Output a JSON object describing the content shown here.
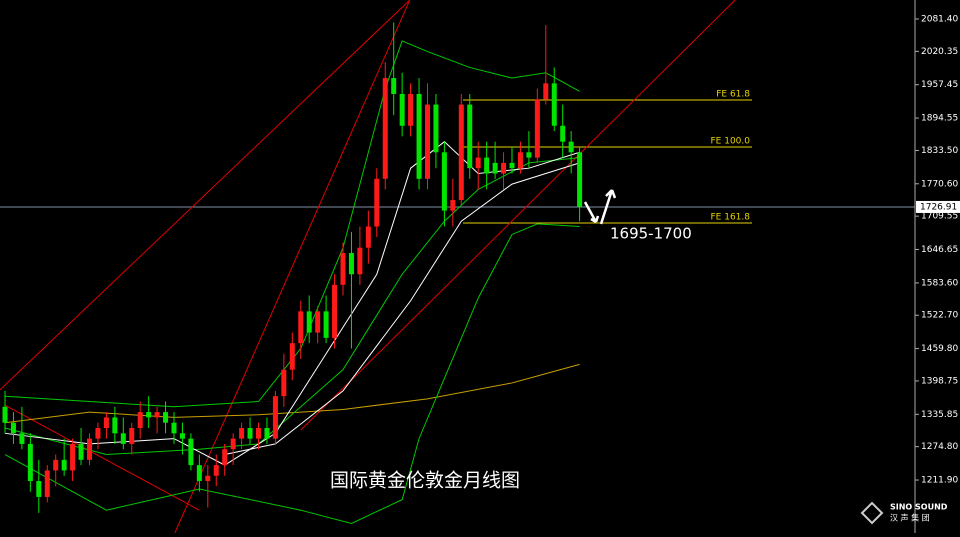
{
  "chart_data": {
    "type": "candlestick",
    "up_color": "#ff1a1a",
    "down_color": "#00e600",
    "ylim": [
      1112,
      2117.2
    ],
    "yticks": [
      {
        "value": 2081.4,
        "label": "2081.40"
      },
      {
        "value": 2020.35,
        "label": "2020.35"
      },
      {
        "value": 1957.45,
        "label": "1957.45"
      },
      {
        "value": 1894.55,
        "label": "1894.55"
      },
      {
        "value": 1833.5,
        "label": "1833.50"
      },
      {
        "value": 1770.6,
        "label": "1770.60"
      },
      {
        "value": 1709.55,
        "label": "1709.55"
      },
      {
        "value": 1646.65,
        "label": "1646.65"
      },
      {
        "value": 1583.6,
        "label": "1583.60"
      },
      {
        "value": 1522.7,
        "label": "1522.70"
      },
      {
        "value": 1459.8,
        "label": "1459.80"
      },
      {
        "value": 1398.75,
        "label": "1398.75"
      },
      {
        "value": 1335.85,
        "label": "1335.85"
      },
      {
        "value": 1274.8,
        "label": "1274.80"
      },
      {
        "value": 1211.9,
        "label": "1211.90"
      }
    ],
    "current_price": 1726.91,
    "candles": [
      [
        1350,
        1380,
        1300,
        1320
      ],
      [
        1320,
        1340,
        1280,
        1300
      ],
      [
        1300,
        1350,
        1270,
        1280
      ],
      [
        1280,
        1300,
        1190,
        1210
      ],
      [
        1210,
        1250,
        1150,
        1180
      ],
      [
        1180,
        1240,
        1170,
        1230
      ],
      [
        1230,
        1260,
        1200,
        1250
      ],
      [
        1250,
        1290,
        1220,
        1230
      ],
      [
        1230,
        1290,
        1210,
        1280
      ],
      [
        1280,
        1310,
        1240,
        1250
      ],
      [
        1250,
        1300,
        1240,
        1290
      ],
      [
        1290,
        1320,
        1270,
        1310
      ],
      [
        1310,
        1340,
        1290,
        1330
      ],
      [
        1330,
        1350,
        1280,
        1300
      ],
      [
        1300,
        1330,
        1270,
        1280
      ],
      [
        1280,
        1320,
        1260,
        1310
      ],
      [
        1310,
        1360,
        1290,
        1340
      ],
      [
        1340,
        1370,
        1310,
        1330
      ],
      [
        1330,
        1350,
        1300,
        1340
      ],
      [
        1340,
        1360,
        1300,
        1320
      ],
      [
        1320,
        1340,
        1280,
        1300
      ],
      [
        1300,
        1320,
        1260,
        1290
      ],
      [
        1290,
        1300,
        1230,
        1240
      ],
      [
        1240,
        1260,
        1190,
        1210
      ],
      [
        1210,
        1240,
        1160,
        1220
      ],
      [
        1220,
        1260,
        1200,
        1240
      ],
      [
        1240,
        1280,
        1220,
        1270
      ],
      [
        1270,
        1300,
        1240,
        1290
      ],
      [
        1290,
        1320,
        1270,
        1310
      ],
      [
        1310,
        1330,
        1280,
        1290
      ],
      [
        1290,
        1320,
        1270,
        1310
      ],
      [
        1310,
        1330,
        1280,
        1290
      ],
      [
        1290,
        1380,
        1280,
        1370
      ],
      [
        1370,
        1450,
        1350,
        1420
      ],
      [
        1420,
        1490,
        1400,
        1470
      ],
      [
        1470,
        1550,
        1440,
        1530
      ],
      [
        1530,
        1560,
        1470,
        1490
      ],
      [
        1490,
        1540,
        1470,
        1530
      ],
      [
        1530,
        1560,
        1470,
        1480
      ],
      [
        1480,
        1600,
        1460,
        1580
      ],
      [
        1580,
        1660,
        1560,
        1640
      ],
      [
        1640,
        1680,
        1460,
        1600
      ],
      [
        1600,
        1690,
        1580,
        1650
      ],
      [
        1650,
        1720,
        1620,
        1690
      ],
      [
        1690,
        1800,
        1670,
        1780
      ],
      [
        1780,
        2000,
        1760,
        1970
      ],
      [
        1970,
        2075,
        1900,
        1940
      ],
      [
        1940,
        1980,
        1860,
        1880
      ],
      [
        1880,
        1960,
        1860,
        1940
      ],
      [
        1940,
        1970,
        1760,
        1780
      ],
      [
        1780,
        1960,
        1760,
        1920
      ],
      [
        1920,
        1940,
        1800,
        1830
      ],
      [
        1830,
        1850,
        1690,
        1720
      ],
      [
        1720,
        1780,
        1690,
        1740
      ],
      [
        1740,
        1940,
        1730,
        1920
      ],
      [
        1920,
        1940,
        1780,
        1800
      ],
      [
        1800,
        1850,
        1760,
        1820
      ],
      [
        1820,
        1850,
        1760,
        1790
      ],
      [
        1810,
        1850,
        1780,
        1790
      ],
      [
        1790,
        1830,
        1760,
        1810
      ],
      [
        1810,
        1840,
        1790,
        1800
      ],
      [
        1800,
        1850,
        1790,
        1830
      ],
      [
        1830,
        1870,
        1800,
        1820
      ],
      [
        1820,
        1950,
        1810,
        1930
      ],
      [
        1930,
        2070,
        1920,
        1960
      ],
      [
        1960,
        1990,
        1870,
        1880
      ],
      [
        1880,
        1920,
        1820,
        1850
      ],
      [
        1850,
        1870,
        1790,
        1830
      ],
      [
        1830,
        1840,
        1700,
        1726.91
      ]
    ],
    "series": [
      {
        "color": "#c8a000",
        "x": [
          0,
          10,
          20,
          30,
          40,
          50,
          60,
          68
        ],
        "values": [
          1320,
          1340,
          1330,
          1335,
          1345,
          1365,
          1395,
          1430
        ]
      },
      {
        "color": "#00c800",
        "x": [
          0,
          10,
          20,
          30,
          35,
          40,
          45,
          47,
          50,
          55,
          60,
          64,
          68
        ],
        "values": [
          1370,
          1360,
          1350,
          1360,
          1460,
          1650,
          1950,
          2040,
          2020,
          1990,
          1970,
          1980,
          1945
        ]
      },
      {
        "color": "#00c800",
        "x": [
          0,
          12,
          23,
          35,
          41,
          47,
          49,
          56,
          60,
          63,
          68
        ],
        "values": [
          1260,
          1155,
          1195,
          1155,
          1130,
          1175,
          1290,
          1555,
          1675,
          1695,
          1690
        ]
      },
      {
        "color": "#00c800",
        "x": [
          0,
          12,
          23,
          30,
          40,
          47,
          52,
          56,
          62,
          68
        ],
        "values": [
          1310,
          1260,
          1270,
          1280,
          1420,
          1600,
          1700,
          1760,
          1810,
          1820
        ]
      },
      {
        "color": "#ffffff",
        "x": [
          0,
          10,
          20,
          26,
          32,
          38,
          44,
          48,
          52,
          56,
          62,
          68
        ],
        "values": [
          1300,
          1280,
          1290,
          1240,
          1300,
          1450,
          1600,
          1800,
          1850,
          1790,
          1800,
          1830
        ]
      },
      {
        "color": "#ffffff",
        "x": [
          26,
          32,
          40,
          48,
          54,
          60,
          68
        ],
        "values": [
          1260,
          1280,
          1380,
          1550,
          1700,
          1770,
          1810
        ]
      }
    ],
    "trendlines": [
      {
        "color": "#e00000",
        "x": [
          20.1,
          47.9
        ],
        "values": [
          1112,
          2117
        ]
      },
      {
        "color": "#e00000",
        "x": [
          0,
          23
        ],
        "values": [
          1353,
          1155
        ]
      },
      {
        "color": "#e00000",
        "x": [
          -0.6,
          47.9
        ],
        "values": [
          1382,
          2117
        ]
      },
      {
        "color": "#e00000",
        "x": [
          35,
          86.4
        ],
        "values": [
          1306,
          2117
        ]
      }
    ],
    "fib_levels": [
      {
        "label": "FE 61.8",
        "value": 1928.6
      },
      {
        "label": "FE 100.0",
        "value": 1840
      },
      {
        "label": "FE 161.8",
        "value": 1696.7
      }
    ],
    "annotation": "1695-1700",
    "caption": "国际黄金伦敦金月线图",
    "logo": {
      "name": "SINO SOUND",
      "sub": "汉 声 集 团"
    }
  }
}
